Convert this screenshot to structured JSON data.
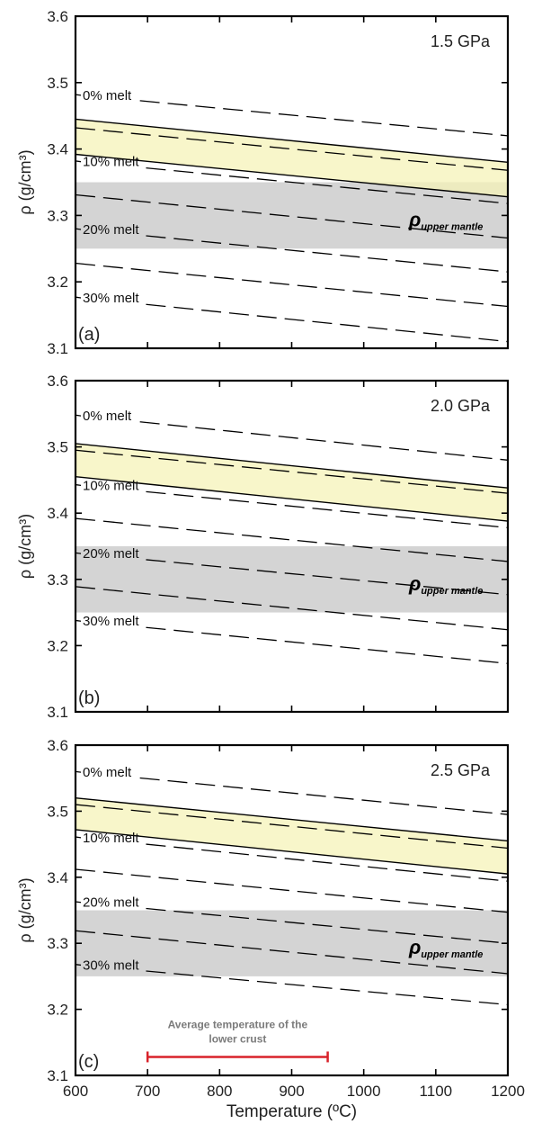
{
  "chart_data": [
    {
      "type": "line",
      "panel_label": "(a)",
      "pressure_label": "1.5 GPa",
      "xlim": [
        600,
        1200
      ],
      "ylim": [
        3.1,
        3.6
      ],
      "ylabel": "ρ (g/cm³)",
      "xticks": [
        600,
        700,
        800,
        900,
        1000,
        1100,
        1200
      ],
      "yticks": [
        "3.1",
        "3.2",
        "3.3",
        "3.4",
        "3.5",
        "3.6"
      ],
      "show_xtick_labels": false,
      "series": [
        {
          "name": "0% melt",
          "style": "dashed",
          "x": [
            600,
            1200
          ],
          "y": [
            3.482,
            3.42
          ]
        },
        {
          "style": "dashed",
          "x": [
            600,
            1200
          ],
          "y": [
            3.432,
            3.368
          ]
        },
        {
          "name": "10% melt",
          "style": "dashed",
          "x": [
            600,
            1200
          ],
          "y": [
            3.382,
            3.318
          ]
        },
        {
          "style": "dashed",
          "x": [
            600,
            1200
          ],
          "y": [
            3.331,
            3.266
          ]
        },
        {
          "name": "20% melt",
          "style": "dashed",
          "x": [
            600,
            1200
          ],
          "y": [
            3.28,
            3.215
          ]
        },
        {
          "style": "dashed",
          "x": [
            600,
            1200
          ],
          "y": [
            3.228,
            3.163
          ]
        },
        {
          "name": "30% melt",
          "style": "dashed",
          "x": [
            600,
            1200
          ],
          "y": [
            3.177,
            3.11
          ]
        }
      ],
      "label_positions_x": [
        610,
        610,
        610,
        610,
        610,
        610,
        610
      ],
      "band": {
        "x": [
          600,
          1200
        ],
        "upper": [
          3.445,
          3.38
        ],
        "lower": [
          3.392,
          3.328
        ],
        "color": "#f5f3b8"
      },
      "mantle_range": {
        "y": [
          3.25,
          3.35
        ],
        "color": "#d4d4d4",
        "label_main": "ρ",
        "label_sub": "upper mantle"
      }
    },
    {
      "type": "line",
      "panel_label": "(b)",
      "pressure_label": "2.0 GPa",
      "xlim": [
        600,
        1200
      ],
      "ylim": [
        3.1,
        3.6
      ],
      "ylabel": "ρ (g/cm³)",
      "xticks": [
        600,
        700,
        800,
        900,
        1000,
        1100,
        1200
      ],
      "yticks": [
        "3.1",
        "3.2",
        "3.3",
        "3.4",
        "3.5",
        "3.6"
      ],
      "show_xtick_labels": false,
      "series": [
        {
          "name": "0% melt",
          "style": "dashed",
          "x": [
            600,
            1200
          ],
          "y": [
            3.548,
            3.48
          ]
        },
        {
          "style": "dashed",
          "x": [
            600,
            1200
          ],
          "y": [
            3.495,
            3.43
          ]
        },
        {
          "name": "10% melt",
          "style": "dashed",
          "x": [
            600,
            1200
          ],
          "y": [
            3.443,
            3.378
          ]
        },
        {
          "style": "dashed",
          "x": [
            600,
            1200
          ],
          "y": [
            3.392,
            3.327
          ]
        },
        {
          "name": "20% melt",
          "style": "dashed",
          "x": [
            600,
            1200
          ],
          "y": [
            3.34,
            3.277
          ]
        },
        {
          "style": "dashed",
          "x": [
            600,
            1200
          ],
          "y": [
            3.289,
            3.224
          ]
        },
        {
          "name": "30% melt",
          "style": "dashed",
          "x": [
            600,
            1200
          ],
          "y": [
            3.238,
            3.173
          ]
        }
      ],
      "label_positions_x": [
        610,
        610,
        610,
        610,
        610,
        610,
        610
      ],
      "band": {
        "x": [
          600,
          1200
        ],
        "upper": [
          3.505,
          3.438
        ],
        "lower": [
          3.455,
          3.388
        ],
        "color": "#f5f3b8"
      },
      "mantle_range": {
        "y": [
          3.25,
          3.35
        ],
        "color": "#d4d4d4",
        "label_main": "ρ",
        "label_sub": "upper mantle"
      }
    },
    {
      "type": "line",
      "panel_label": "(c)",
      "pressure_label": "2.5 GPa",
      "xlim": [
        600,
        1200
      ],
      "ylim": [
        3.1,
        3.6
      ],
      "ylabel": "ρ (g/cm³)",
      "xlabel": "Temperature (ºC)",
      "xticks": [
        600,
        700,
        800,
        900,
        1000,
        1100,
        1200
      ],
      "xtick_labels": [
        "600",
        "700",
        "800",
        "900",
        "1000",
        "1100",
        "1200"
      ],
      "yticks": [
        "3.1",
        "3.2",
        "3.3",
        "3.4",
        "3.5",
        "3.6"
      ],
      "show_xtick_labels": true,
      "series": [
        {
          "name": "0% melt",
          "style": "dashed",
          "x": [
            600,
            1200
          ],
          "y": [
            3.56,
            3.495
          ]
        },
        {
          "style": "dashed",
          "x": [
            600,
            1200
          ],
          "y": [
            3.51,
            3.444
          ]
        },
        {
          "name": "10% melt",
          "style": "dashed",
          "x": [
            600,
            1200
          ],
          "y": [
            3.461,
            3.394
          ]
        },
        {
          "style": "dashed",
          "x": [
            600,
            1200
          ],
          "y": [
            3.412,
            3.347
          ]
        },
        {
          "name": "20% melt",
          "style": "dashed",
          "x": [
            600,
            1200
          ],
          "y": [
            3.363,
            3.3
          ]
        },
        {
          "style": "dashed",
          "x": [
            600,
            1200
          ],
          "y": [
            3.319,
            3.254
          ]
        },
        {
          "name": "30% melt",
          "style": "dashed",
          "x": [
            600,
            1200
          ],
          "y": [
            3.268,
            3.207
          ]
        }
      ],
      "label_positions_x": [
        610,
        610,
        610,
        610,
        610,
        610,
        610
      ],
      "band": {
        "x": [
          600,
          1200
        ],
        "upper": [
          3.52,
          3.455
        ],
        "lower": [
          3.472,
          3.405
        ],
        "color": "#f5f3b8"
      },
      "mantle_range": {
        "y": [
          3.25,
          3.35
        ],
        "color": "#d4d4d4",
        "label_main": "ρ",
        "label_sub": "upper mantle"
      },
      "range_annotation": {
        "x": [
          700,
          950
        ],
        "y": 3.128,
        "label_lines": [
          "Average temperature of the",
          "lower crust"
        ],
        "color": "#d8222a",
        "text_color": "#7b7b7b"
      }
    }
  ]
}
